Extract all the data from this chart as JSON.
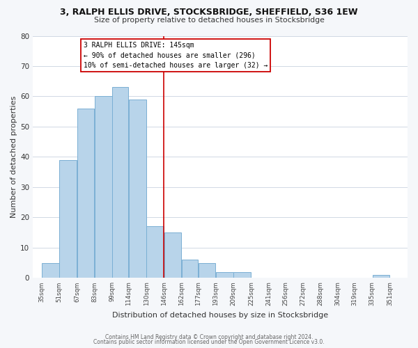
{
  "title1": "3, RALPH ELLIS DRIVE, STOCKSBRIDGE, SHEFFIELD, S36 1EW",
  "title2": "Size of property relative to detached houses in Stocksbridge",
  "xlabel": "Distribution of detached houses by size in Stocksbridge",
  "ylabel": "Number of detached properties",
  "bar_left_edges": [
    35,
    51,
    67,
    83,
    99,
    114,
    130,
    146,
    162,
    177,
    193,
    209,
    225,
    241,
    256,
    272,
    288,
    304,
    319,
    335
  ],
  "bar_heights": [
    5,
    39,
    56,
    60,
    63,
    59,
    17,
    15,
    6,
    5,
    2,
    2,
    0,
    0,
    0,
    0,
    0,
    0,
    0,
    1
  ],
  "bar_widths": [
    16,
    16,
    16,
    16,
    15,
    16,
    16,
    16,
    15,
    16,
    16,
    16,
    16,
    15,
    16,
    16,
    16,
    15,
    16,
    16
  ],
  "tick_labels": [
    "35sqm",
    "51sqm",
    "67sqm",
    "83sqm",
    "99sqm",
    "114sqm",
    "130sqm",
    "146sqm",
    "162sqm",
    "177sqm",
    "193sqm",
    "209sqm",
    "225sqm",
    "241sqm",
    "256sqm",
    "272sqm",
    "288sqm",
    "304sqm",
    "319sqm",
    "335sqm",
    "351sqm"
  ],
  "tick_positions": [
    35,
    51,
    67,
    83,
    99,
    114,
    130,
    146,
    162,
    177,
    193,
    209,
    225,
    241,
    256,
    272,
    288,
    304,
    319,
    335,
    351
  ],
  "bar_color": "#b8d4ea",
  "bar_edge_color": "#7aafd4",
  "vline_x": 146,
  "vline_color": "#cc0000",
  "ylim": [
    0,
    80
  ],
  "xlim": [
    27,
    367
  ],
  "annotation_line1": "3 RALPH ELLIS DRIVE: 145sqm",
  "annotation_line2": "← 90% of detached houses are smaller (296)",
  "annotation_line3": "10% of semi-detached houses are larger (32) →",
  "footer1": "Contains HM Land Registry data © Crown copyright and database right 2024.",
  "footer2": "Contains public sector information licensed under the Open Government Licence v3.0.",
  "bg_color": "#f5f7fa",
  "plot_bg_color": "#ffffff",
  "grid_color": "#d0d8e4"
}
